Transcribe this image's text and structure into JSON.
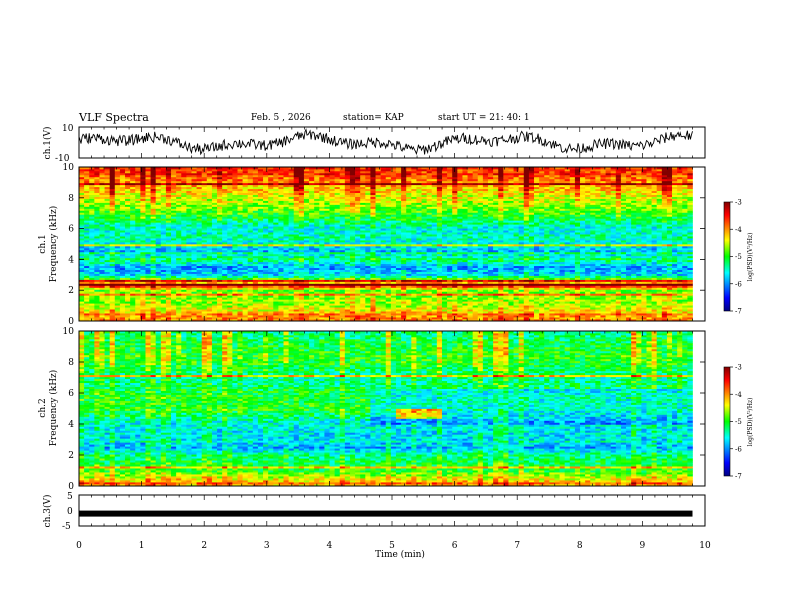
{
  "header": {
    "title": "VLF Spectra",
    "date": "Feb. 5 , 2026",
    "station": "station= KAP",
    "start": "start UT = 21: 40: 1"
  },
  "chart_data": [
    {
      "type": "line",
      "name": "ch1-waveform",
      "ylabel": "ch.1(V)",
      "ylim": [
        -10,
        10
      ],
      "ytick_labels": [
        "10",
        "-10"
      ],
      "xlim": [
        0,
        10
      ]
    },
    {
      "type": "heatmap",
      "name": "ch1-spectrogram",
      "ylabel": "ch.1\nFrequency (kHz)",
      "ylim": [
        0,
        10
      ],
      "ytick_labels": [
        "0",
        "2",
        "4",
        "6",
        "8",
        "10"
      ],
      "xlim": [
        0,
        10
      ],
      "data_extent_min": 9.8,
      "colorbar": {
        "label": "log(PSD)(V²/Hz)",
        "range": [
          -7,
          -3
        ],
        "tick_labels": [
          "-3",
          "-4",
          "-5",
          "-6",
          "-7"
        ]
      },
      "approx_log_psd_by_freq_khz": [
        [
          0.3,
          -4.0
        ],
        [
          1.0,
          -4.6
        ],
        [
          2.0,
          -4.8
        ],
        [
          2.3,
          -3.5
        ],
        [
          3.0,
          -5.7
        ],
        [
          3.5,
          -6.0
        ],
        [
          4.0,
          -5.2
        ],
        [
          4.5,
          -5.9
        ],
        [
          5.0,
          -5.6
        ],
        [
          5.5,
          -5.4
        ],
        [
          6.0,
          -5.6
        ],
        [
          7.0,
          -4.9
        ],
        [
          8.0,
          -4.5
        ],
        [
          9.0,
          -4.0
        ],
        [
          10.0,
          -3.6
        ]
      ]
    },
    {
      "type": "heatmap",
      "name": "ch2-spectrogram",
      "ylabel": "ch.2\nFrequency (kHz)",
      "ylim": [
        0,
        10
      ],
      "ytick_labels": [
        "0",
        "2",
        "4",
        "6",
        "8",
        "10"
      ],
      "xlim": [
        0,
        10
      ],
      "data_extent_min": 9.8,
      "colorbar": {
        "label": "log(PSD)(V²/Hz)",
        "range": [
          -7,
          -3
        ],
        "tick_labels": [
          "-3",
          "-4",
          "-5",
          "-6",
          "-7"
        ]
      },
      "approx_log_psd_by_freq_khz": [
        [
          0.3,
          -4.2
        ],
        [
          1.0,
          -5.0
        ],
        [
          2.0,
          -5.3
        ],
        [
          2.5,
          -5.9
        ],
        [
          3.0,
          -5.7
        ],
        [
          4.0,
          -5.6
        ],
        [
          5.0,
          -5.0
        ],
        [
          6.0,
          -5.1
        ],
        [
          7.0,
          -5.4
        ],
        [
          8.0,
          -5.0
        ],
        [
          9.0,
          -5.1
        ],
        [
          10.0,
          -5.3
        ]
      ]
    },
    {
      "type": "line",
      "name": "ch3-waveform",
      "ylabel": "ch.3(V)",
      "ylim": [
        -5,
        5
      ],
      "ytick_labels": [
        "5",
        "0",
        "-5"
      ],
      "xlim": [
        0,
        10
      ],
      "xlabel": "Time (min)",
      "xtick_labels": [
        "0",
        "1",
        "2",
        "3",
        "4",
        "5",
        "6",
        "7",
        "8",
        "9",
        "10"
      ],
      "approx_value_v": -1.0
    }
  ],
  "colors": {
    "cmap": [
      "#000080",
      "#0000ff",
      "#00ffff",
      "#00ff00",
      "#ffff00",
      "#ff0000",
      "#800000"
    ]
  }
}
